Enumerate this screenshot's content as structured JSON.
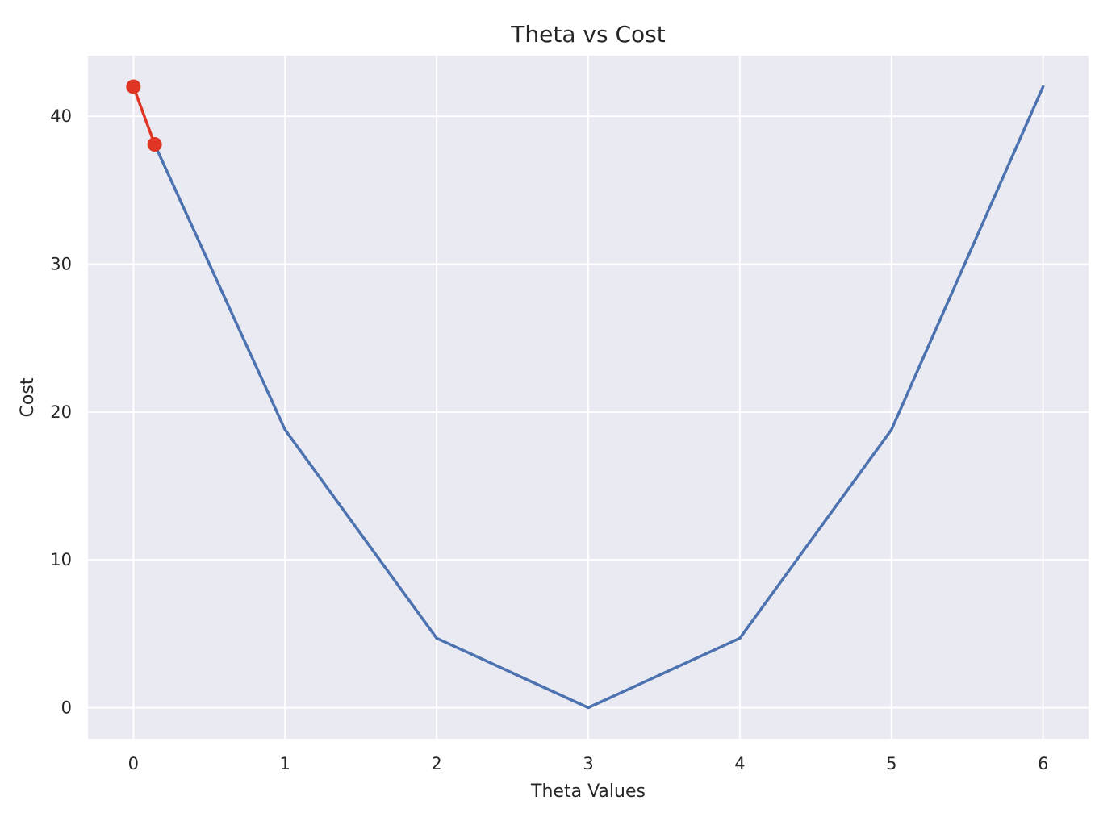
{
  "chart_data": {
    "type": "line",
    "title": "Theta vs Cost",
    "xlabel": "Theta Values",
    "ylabel": "Cost",
    "xlim": [
      -0.3,
      6.3
    ],
    "ylim": [
      -2.1,
      44.1
    ],
    "xticks": [
      0,
      1,
      2,
      3,
      4,
      5,
      6
    ],
    "yticks": [
      0,
      10,
      20,
      30,
      40
    ],
    "grid": true,
    "legend": "none",
    "series": [
      {
        "color": "#4c72b0",
        "marker": "none",
        "x": [
          0.14,
          1,
          2,
          3,
          4,
          5,
          6
        ],
        "y": [
          38.1,
          18.8,
          4.7,
          0,
          4.7,
          18.8,
          42
        ]
      },
      {
        "color": "#e03524",
        "marker": "circle",
        "x": [
          0,
          0.14
        ],
        "y": [
          42,
          38.1
        ]
      }
    ],
    "colors": {
      "plot_background": "#eaeaf2",
      "grid": "#ffffff"
    }
  }
}
